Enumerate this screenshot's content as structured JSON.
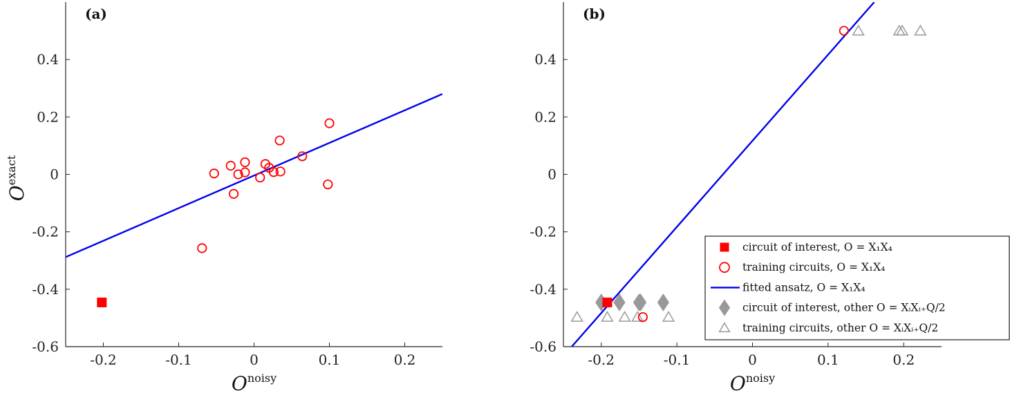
{
  "chart_data": [
    {
      "id": "a",
      "type": "scatter",
      "panel_label": "(a)",
      "xlabel": {
        "main": "O",
        "sup": "noisy"
      },
      "ylabel": {
        "main": "O",
        "sup": "exact"
      },
      "xlim": [
        -0.25,
        0.25
      ],
      "ylim": [
        -0.6,
        0.6
      ],
      "xticks": [
        -0.2,
        -0.1,
        0,
        0.1,
        0.2
      ],
      "xtick_labels": [
        "-0.2",
        "-0.1",
        "0",
        "0.1",
        "0.2"
      ],
      "yticks": [
        -0.6,
        -0.4,
        -0.2,
        0,
        0.2,
        0.4
      ],
      "ytick_labels": [
        "-0.6",
        "-0.4",
        "-0.2",
        "0",
        "0.2",
        "0.4"
      ],
      "grid": false,
      "colors": {
        "red": "#ff0000",
        "blue": "#0000ee",
        "gray": "#999999"
      },
      "series": [
        {
          "role": "circuit-of-interest",
          "marker": "filled-square",
          "color": "#ff0000",
          "points": [
            [
              -0.202,
              -0.446
            ]
          ]
        },
        {
          "role": "training-circuits",
          "marker": "open-circle",
          "color": "#ff0000",
          "points": [
            [
              -0.069,
              -0.257
            ],
            [
              -0.053,
              0.003
            ],
            [
              -0.031,
              0.03
            ],
            [
              -0.027,
              -0.068
            ],
            [
              -0.021,
              0.0
            ],
            [
              -0.012,
              0.042
            ],
            [
              -0.012,
              0.007
            ],
            [
              0.008,
              -0.011
            ],
            [
              0.015,
              0.036
            ],
            [
              0.02,
              0.023
            ],
            [
              0.026,
              0.008
            ],
            [
              0.034,
              0.118
            ],
            [
              0.035,
              0.01
            ],
            [
              0.064,
              0.063
            ],
            [
              0.098,
              -0.035
            ],
            [
              0.1,
              0.178
            ]
          ]
        },
        {
          "role": "fitted-ansatz",
          "marker": "line",
          "color": "#0000ee",
          "points": [
            [
              -0.25,
              -0.288
            ],
            [
              0.25,
              0.28
            ]
          ]
        }
      ]
    },
    {
      "id": "b",
      "type": "scatter",
      "panel_label": "(b)",
      "xlabel": {
        "main": "O",
        "sup": "noisy"
      },
      "ylabel": {
        "main": "",
        "sup": ""
      },
      "xlim": [
        -0.25,
        0.25
      ],
      "ylim": [
        -0.6,
        0.6
      ],
      "xticks": [
        -0.2,
        -0.1,
        0,
        0.1,
        0.2
      ],
      "xtick_labels": [
        "-0.2",
        "-0.1",
        "0",
        "0.1",
        "0.2"
      ],
      "yticks": [
        -0.6,
        -0.4,
        -0.2,
        0,
        0.2,
        0.4
      ],
      "ytick_labels": [
        "-0.6",
        "-0.4",
        "-0.2",
        "0",
        "0.2",
        "0.4"
      ],
      "grid": false,
      "legend_position": "lower-right",
      "series": [
        {
          "name": "circuit of interest, O = X₁X₄",
          "legend_label": "circuit of interest, O = X₁X₄",
          "marker": "filled-square",
          "color": "#ff0000",
          "points": [
            [
              -0.192,
              -0.446
            ]
          ]
        },
        {
          "name": "training circuits, O = X₁X₄",
          "legend_label": "training circuits, O = X₁X₄",
          "marker": "open-circle",
          "color": "#ff0000",
          "points": [
            [
              -0.145,
              -0.497
            ],
            [
              0.121,
              0.5
            ]
          ]
        },
        {
          "name": "fitted ansatz, O = X₁X₄",
          "legend_label": "fitted ansatz, O = X₁X₄",
          "marker": "line",
          "color": "#0000ee",
          "points": [
            [
              -0.239,
              -0.6
            ],
            [
              0.161,
              0.6
            ]
          ]
        },
        {
          "name": "circuit of interest, other O = XᵢXᵢ₊Q/2",
          "legend_label": "circuit of interest, other O = XᵢXᵢ₊Q/2",
          "marker": "filled-diamond",
          "color": "#999999",
          "points": [
            [
              -0.2,
              -0.446
            ],
            [
              -0.176,
              -0.446
            ],
            [
              -0.15,
              -0.446
            ],
            [
              -0.148,
              -0.446
            ],
            [
              -0.118,
              -0.446
            ]
          ]
        },
        {
          "name": "training circuits, other O = XᵢXᵢ₊Q/2",
          "legend_label": "training circuits, other O = XᵢXᵢ₊Q/2",
          "marker": "open-triangle",
          "color": "#999999",
          "points": [
            [
              -0.232,
              -0.497
            ],
            [
              -0.192,
              -0.497
            ],
            [
              -0.169,
              -0.497
            ],
            [
              -0.152,
              -0.497
            ],
            [
              -0.111,
              -0.497
            ],
            [
              0.14,
              0.5
            ],
            [
              0.194,
              0.5
            ],
            [
              0.198,
              0.5
            ],
            [
              0.222,
              0.5
            ]
          ]
        }
      ]
    }
  ]
}
